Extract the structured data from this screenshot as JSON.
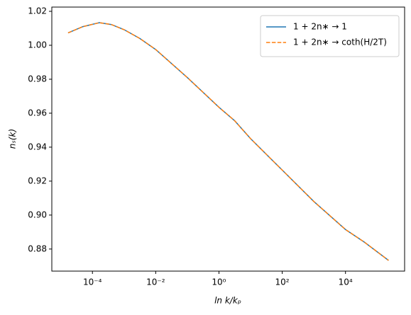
{
  "chart_data": {
    "type": "line",
    "x_label": "ln k/kₚ",
    "y_label": "nₛ(k)",
    "xscale": "log",
    "x": [
      1.7e-05,
      5e-05,
      0.000166,
      0.0004,
      0.001,
      0.00316,
      0.01,
      0.1,
      1,
      3.16,
      10,
      100,
      1000,
      10000,
      40000,
      230000
    ],
    "series": [
      {
        "name": "1 + 2n∗ → 1",
        "color": "#1f77b4",
        "dash": false,
        "values": [
          1.0073,
          1.011,
          1.0133,
          1.0122,
          1.0092,
          1.004,
          0.9975,
          0.981,
          0.9635,
          0.9555,
          0.945,
          0.9265,
          0.908,
          0.8915,
          0.884,
          0.8733
        ]
      },
      {
        "name": "1 + 2n∗ → coth(H/2T)",
        "color": "#ff7f0e",
        "dash": true,
        "values": [
          1.0073,
          1.011,
          1.0133,
          1.0122,
          1.0092,
          1.004,
          0.9975,
          0.981,
          0.9635,
          0.9555,
          0.945,
          0.9265,
          0.908,
          0.8915,
          0.884,
          0.8733
        ]
      }
    ],
    "xlim": [
      5.2e-06,
      740000
    ],
    "ylim": [
      0.867,
      1.0225
    ],
    "xticks": [
      {
        "value": 0.0001,
        "label": "10⁻⁴"
      },
      {
        "value": 0.01,
        "label": "10⁻²"
      },
      {
        "value": 1,
        "label": "10⁰"
      },
      {
        "value": 100,
        "label": "10²"
      },
      {
        "value": 10000,
        "label": "10⁴"
      }
    ],
    "yticks": [
      {
        "value": 0.88,
        "label": "0.88"
      },
      {
        "value": 0.9,
        "label": "0.90"
      },
      {
        "value": 0.92,
        "label": "0.92"
      },
      {
        "value": 0.94,
        "label": "0.94"
      },
      {
        "value": 0.96,
        "label": "0.96"
      },
      {
        "value": 0.98,
        "label": "0.98"
      },
      {
        "value": 1,
        "label": "1.00"
      },
      {
        "value": 1.02,
        "label": "1.02"
      }
    ],
    "legend": "upper right"
  }
}
